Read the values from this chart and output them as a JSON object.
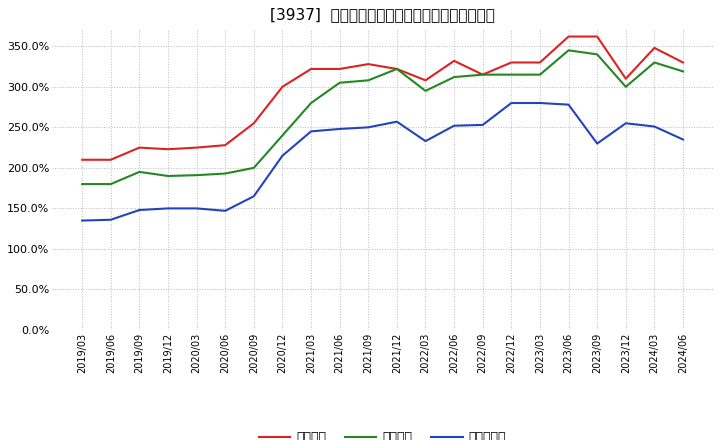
{
  "title": "[3937]  流動比率、当座比率、現預金比率の推移",
  "background_color": "#ffffff",
  "grid_color": "#bbbbbb",
  "dates": [
    "2019/03",
    "2019/06",
    "2019/09",
    "2019/12",
    "2020/03",
    "2020/06",
    "2020/09",
    "2020/12",
    "2021/03",
    "2021/06",
    "2021/09",
    "2021/12",
    "2022/03",
    "2022/06",
    "2022/09",
    "2022/12",
    "2023/03",
    "2023/06",
    "2023/09",
    "2023/12",
    "2024/03",
    "2024/06"
  ],
  "ryudo": [
    210,
    210,
    225,
    223,
    225,
    228,
    255,
    300,
    322,
    322,
    328,
    322,
    308,
    332,
    315,
    330,
    330,
    362,
    362,
    310,
    348,
    330
  ],
  "toza": [
    180,
    180,
    195,
    190,
    191,
    193,
    200,
    240,
    280,
    305,
    308,
    322,
    295,
    312,
    315,
    315,
    315,
    345,
    340,
    300,
    330,
    319
  ],
  "genkin": [
    135,
    136,
    148,
    150,
    150,
    147,
    165,
    215,
    245,
    248,
    250,
    257,
    233,
    252,
    253,
    280,
    280,
    278,
    230,
    255,
    251,
    235
  ],
  "ryudo_color": "#dd2222",
  "toza_color": "#228822",
  "genkin_color": "#2244bb",
  "legend_labels": [
    "流動比率",
    "当座比率",
    "現預金比率"
  ],
  "line_width": 1.5,
  "yticks": [
    0,
    50,
    100,
    150,
    200,
    250,
    300,
    350
  ],
  "ylim": [
    0,
    370
  ],
  "title_fontsize": 11
}
